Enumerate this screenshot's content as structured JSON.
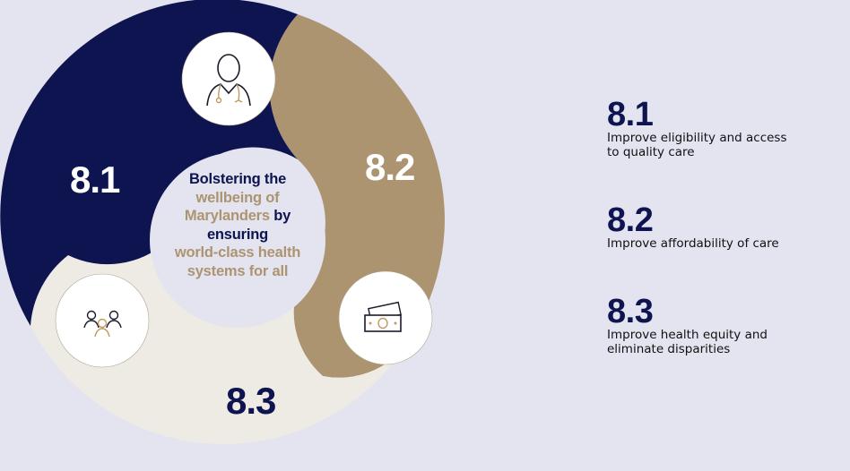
{
  "colors": {
    "background": "#e4e4f0",
    "navy": "#0d1450",
    "gold": "#ad9470",
    "cream": "#eeebe4",
    "white": "#ffffff"
  },
  "diagram": {
    "center": {
      "line1": "Bolstering the",
      "line2": "wellbeing of",
      "line3a": "Marylanders",
      "line3b": " by",
      "line4": "ensuring",
      "line5": "world-class health",
      "line6": "systems for all"
    },
    "segments": [
      {
        "label": "8.1",
        "icon": "doctor-stethoscope-icon",
        "color": "navy"
      },
      {
        "label": "8.2",
        "icon": "money-bills-icon",
        "color": "gold"
      },
      {
        "label": "8.3",
        "icon": "people-group-icon",
        "color": "cream"
      }
    ]
  },
  "legend": [
    {
      "number": "8.1",
      "text": "Improve eligibility and access\nto quality care"
    },
    {
      "number": "8.2",
      "text": "Improve affordability of care"
    },
    {
      "number": "8.3",
      "text": "Improve health equity and\neliminate disparities"
    }
  ]
}
